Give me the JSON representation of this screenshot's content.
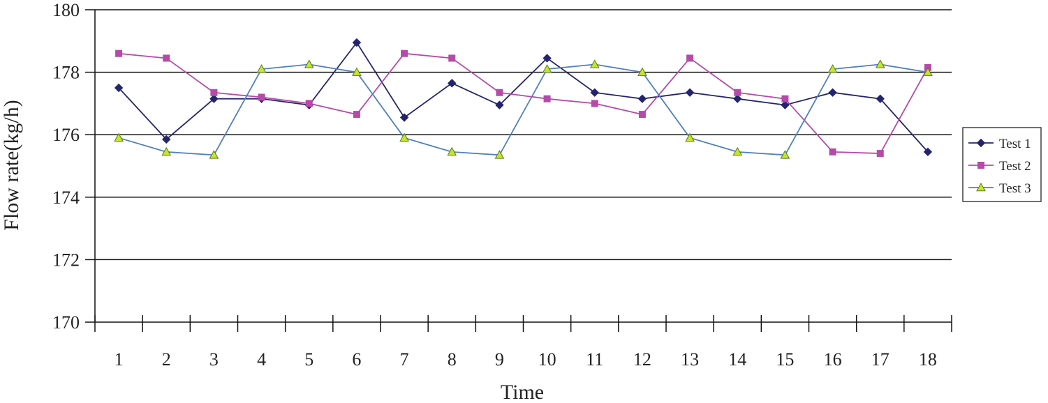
{
  "chart_data": {
    "type": "line",
    "title": "",
    "xlabel": "Time",
    "ylabel": "Flow rate(kg/h)",
    "categories": [
      "1",
      "2",
      "3",
      "4",
      "5",
      "6",
      "7",
      "8",
      "9",
      "10",
      "11",
      "12",
      "13",
      "14",
      "15",
      "16",
      "17",
      "18"
    ],
    "ylim": [
      170,
      180
    ],
    "yticks": [
      "170",
      "172",
      "174",
      "176",
      "178",
      "180"
    ],
    "grid": "horizontal",
    "legend_position": "right",
    "series": [
      {
        "name": "Test 1",
        "color": "#24246e",
        "marker": "diamond",
        "values": [
          177.5,
          175.85,
          177.15,
          177.15,
          176.95,
          178.95,
          176.55,
          177.65,
          176.95,
          178.45,
          177.35,
          177.15,
          177.35,
          177.15,
          176.95,
          177.35,
          177.15,
          175.45
        ]
      },
      {
        "name": "Test 2",
        "color": "#b54aa8",
        "marker": "square",
        "values": [
          178.6,
          178.45,
          177.35,
          177.2,
          177.0,
          176.65,
          178.6,
          178.45,
          177.35,
          177.15,
          177.0,
          176.65,
          178.45,
          177.35,
          177.15,
          175.45,
          175.4,
          178.15
        ]
      },
      {
        "name": "Test 3",
        "color": "#4f7fc0",
        "marker": "triangle",
        "marker_fill": "#c4e62b",
        "values": [
          175.9,
          175.45,
          175.35,
          178.1,
          178.25,
          178.0,
          175.9,
          175.45,
          175.35,
          178.1,
          178.25,
          178.0,
          175.9,
          175.45,
          175.35,
          178.1,
          178.25,
          178.0
        ]
      }
    ]
  }
}
